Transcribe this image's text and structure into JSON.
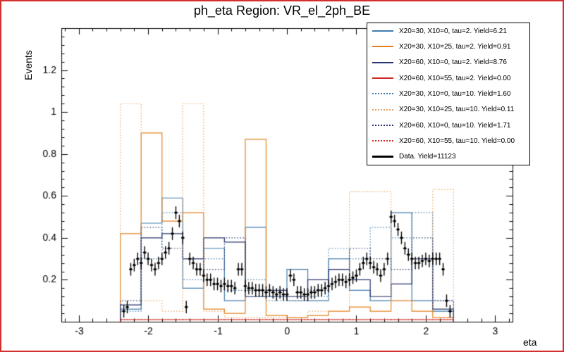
{
  "window": {
    "border_color": "#d32f2f",
    "background": "#ffffff"
  },
  "chart_data": {
    "type": "bar",
    "subtype": "overlaid-step-histograms-with-data-points",
    "title": "ph_eta Region: VR_el_2ph_BE",
    "xlabel": "eta",
    "ylabel": "Events",
    "grid": false,
    "legend_position": "top-right",
    "x_axis": {
      "min": -3.25,
      "max": 3.25,
      "ticks": [
        -3,
        -2,
        -1,
        0,
        1,
        2,
        3
      ],
      "minor_step": 0.2
    },
    "y_axis": {
      "min": 0,
      "max": 1.4,
      "ticks": [
        0.2,
        0.4,
        0.6,
        0.8,
        1,
        1.2
      ],
      "minor_step": 0.04
    },
    "bin_start": -2.4,
    "bin_width": 0.3,
    "series": [
      {
        "label": "X20=30, X10=0, tau=2. Yield=6.21",
        "color": "#417cab",
        "dash": "solid",
        "values": [
          0.06,
          0.47,
          0.59,
          0.16,
          0.35,
          0.1,
          0.45,
          0.12,
          0.25,
          0.1,
          0.3,
          0.15,
          0.1,
          0.52,
          0.1,
          0.05
        ]
      },
      {
        "label": "X20=30, X10=25, tau=2. Yield=0.91",
        "color": "#e2811f",
        "dash": "solid",
        "values": [
          0.42,
          0.9,
          0.48,
          0.52,
          0.06,
          0.04,
          0.87,
          0.03,
          0.02,
          0.03,
          0.05,
          0.07,
          0.05,
          0.1,
          0.05,
          0.02
        ]
      },
      {
        "label": "X20=60, X10=0, tau=2. Yield=8.76",
        "color": "#28346f",
        "dash": "solid",
        "values": [
          0.08,
          0.4,
          0.42,
          0.3,
          0.4,
          0.38,
          0.12,
          0.15,
          0.12,
          0.2,
          0.25,
          0.2,
          0.12,
          0.18,
          0.3,
          0.06
        ]
      },
      {
        "label": "X20=60, X10=55, tau=2. Yield=0.00",
        "color": "#cc2a27",
        "dash": "solid",
        "values": [
          0.01,
          0.01,
          0.01,
          0.01,
          0.01,
          0.01,
          0.01,
          0.01,
          0.01,
          0.01,
          0.01,
          0.01,
          0.01,
          0.01,
          0.01,
          0.01
        ]
      },
      {
        "label": "X20=30, X10=0, tau=10. Yield=1.60",
        "color": "#417cab",
        "dash": "dotted",
        "values": [
          0.05,
          0.3,
          0.52,
          0.2,
          0.3,
          0.15,
          0.2,
          0.1,
          0.1,
          0.12,
          0.35,
          0.3,
          0.45,
          0.4,
          0.52,
          0.1
        ]
      },
      {
        "label": "X20=30, X10=25, tau=10. Yield=0.11",
        "color": "#eaa45f",
        "dash": "dotted",
        "values": [
          1.04,
          0.1,
          0.05,
          1.04,
          0.05,
          0.02,
          0.02,
          0.02,
          0.02,
          0.05,
          0.05,
          0.62,
          0.62,
          0.1,
          0.05,
          0.63
        ]
      },
      {
        "label": "X20=60, X10=0, tau=10. Yield=1.71",
        "color": "#28346f",
        "dash": "dotted",
        "values": [
          0.1,
          0.45,
          0.35,
          0.3,
          0.25,
          0.4,
          0.15,
          0.12,
          0.1,
          0.15,
          0.25,
          0.35,
          0.3,
          0.25,
          0.4,
          0.1
        ]
      },
      {
        "label": "X20=60, X10=55, tau=10. Yield=0.00",
        "color": "#cc2a27",
        "dash": "dotted",
        "values": [
          0.01,
          0.01,
          0.01,
          0.01,
          0.01,
          0.01,
          0.01,
          0.01,
          0.01,
          0.01,
          0.01,
          0.01,
          0.01,
          0.01,
          0.01,
          0.01
        ]
      }
    ],
    "data_series": {
      "label": "Data. Yield=11123",
      "color": "#000000",
      "x0": -2.35,
      "dx": 0.05,
      "yerr": 0.03,
      "xerr": 0.025,
      "values": [
        0.05,
        0.07,
        0.25,
        0.27,
        0.3,
        0.28,
        0.33,
        0.3,
        0.27,
        0.25,
        0.28,
        0.3,
        0.33,
        0.35,
        0.42,
        0.52,
        0.48,
        0.4,
        0.07,
        0.3,
        0.28,
        0.25,
        0.25,
        0.22,
        0.2,
        0.2,
        0.18,
        0.18,
        0.17,
        0.18,
        0.17,
        0.17,
        0.16,
        0.25,
        0.25,
        0.17,
        0.16,
        0.16,
        0.15,
        0.15,
        0.15,
        0.14,
        0.15,
        0.14,
        0.13,
        0.14,
        0.13,
        0.13,
        0.22,
        0.2,
        0.14,
        0.14,
        0.13,
        0.13,
        0.14,
        0.14,
        0.15,
        0.15,
        0.16,
        0.17,
        0.18,
        0.19,
        0.2,
        0.2,
        0.19,
        0.2,
        0.21,
        0.22,
        0.25,
        0.28,
        0.3,
        0.28,
        0.26,
        0.25,
        0.22,
        0.25,
        0.3,
        0.5,
        0.48,
        0.44,
        0.4,
        0.35,
        0.32,
        0.3,
        0.28,
        0.28,
        0.29,
        0.3,
        0.29,
        0.3,
        0.3,
        0.3,
        0.25,
        0.1,
        0.05
      ]
    }
  }
}
